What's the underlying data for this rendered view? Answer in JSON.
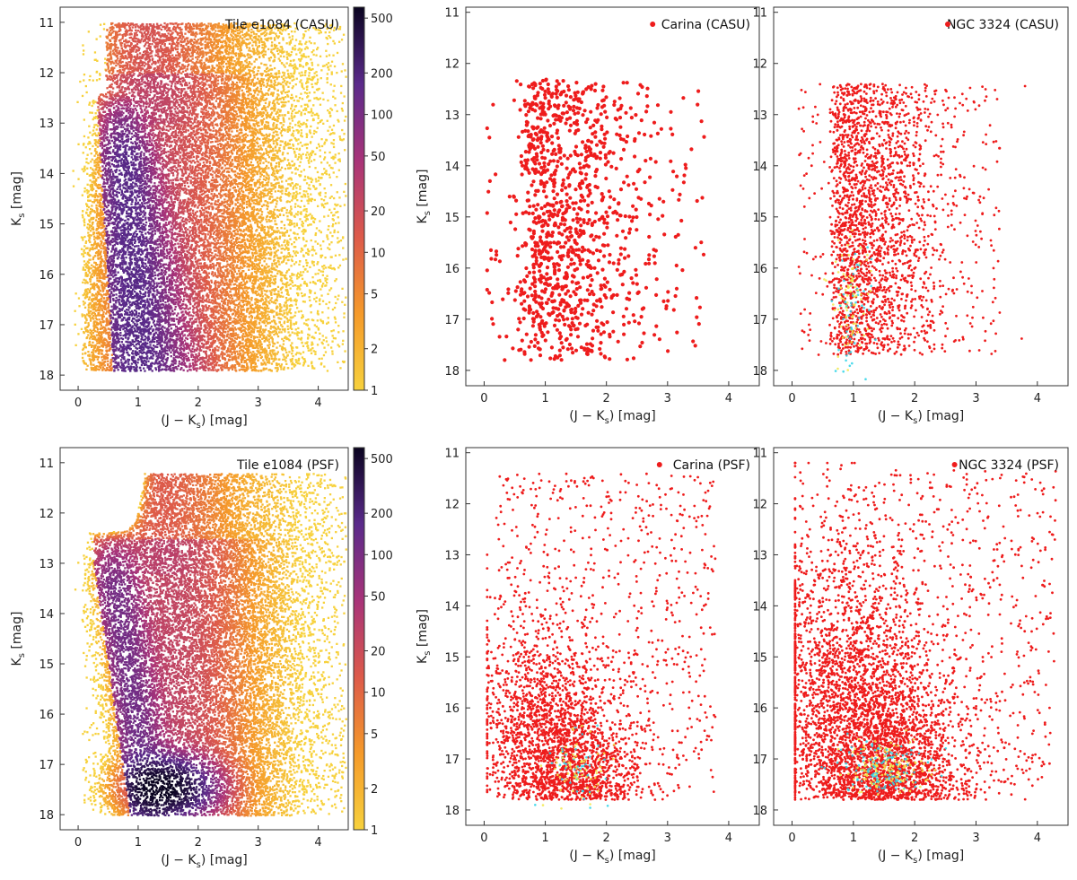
{
  "figure": {
    "xlabel_prefix": "(J − K",
    "xlabel_sub": "s",
    "xlabel_suffix": ") [mag]",
    "ylabel_prefix": "K",
    "ylabel_sub": "s",
    "ylabel_suffix": " [mag]"
  },
  "colors": {
    "points": "#ee1c1c",
    "density_low": "#f5c12e",
    "density_mid": "#b5367a",
    "density_high": "#0a0623",
    "dense_cyan": "#2fd3e8",
    "dense_yellow": "#f2e84a"
  },
  "chart_data": [
    {
      "type": "heatmap",
      "panel": "top-left",
      "legend_text": "Tile e1084 (CASU)",
      "xlim": [
        -0.3,
        4.5
      ],
      "ylim": [
        18.3,
        10.7
      ],
      "xticks": [
        0,
        1,
        2,
        3,
        4
      ],
      "yticks": [
        11,
        12,
        13,
        14,
        15,
        16,
        17,
        18
      ],
      "colorbar": {
        "scale": "log",
        "range": [
          1,
          600
        ],
        "ticks": [
          1,
          2,
          5,
          10,
          20,
          50,
          100,
          200,
          500
        ]
      },
      "features": {
        "ks_bright": 10.9,
        "ks_faint": 17.9,
        "ridge_color": [
          0.4,
          0.9
        ],
        "density_peak": 150
      }
    },
    {
      "type": "scatter",
      "panel": "top-middle",
      "legend_text": "Carina (CASU)",
      "xlim": [
        -0.3,
        4.5
      ],
      "ylim": [
        18.3,
        10.9
      ],
      "xticks": [
        0,
        1,
        2,
        3,
        4
      ],
      "yticks": [
        11,
        12,
        13,
        14,
        15,
        16,
        17,
        18
      ],
      "approx_points": 1200
    },
    {
      "type": "scatter",
      "panel": "top-right",
      "legend_text": "NGC 3324 (CASU)",
      "xlim": [
        -0.3,
        4.5
      ],
      "ylim": [
        18.3,
        10.9
      ],
      "xticks": [
        0,
        1,
        2,
        3,
        4
      ],
      "yticks": [
        11,
        12,
        13,
        14,
        15,
        16,
        17,
        18
      ],
      "approx_points": 2400
    },
    {
      "type": "heatmap",
      "panel": "bottom-left",
      "legend_text": "Tile e1084 (PSF)",
      "xlim": [
        -0.3,
        4.5
      ],
      "ylim": [
        18.3,
        10.7
      ],
      "xticks": [
        0,
        1,
        2,
        3,
        4
      ],
      "yticks": [
        11,
        12,
        13,
        14,
        15,
        16,
        17,
        18
      ],
      "colorbar": {
        "scale": "log",
        "range": [
          1,
          600
        ],
        "ticks": [
          1,
          2,
          5,
          10,
          20,
          50,
          100,
          200,
          500
        ]
      },
      "features": {
        "ks_bright": 11.4,
        "ks_faint": 18.0,
        "density_peak_at": [
          1.5,
          17.4
        ]
      }
    },
    {
      "type": "scatter",
      "panel": "bottom-middle",
      "legend_text": "Carina (PSF)",
      "xlim": [
        -0.3,
        4.5
      ],
      "ylim": [
        18.3,
        10.9
      ],
      "xticks": [
        0,
        1,
        2,
        3,
        4
      ],
      "yticks": [
        11,
        12,
        13,
        14,
        15,
        16,
        17,
        18
      ],
      "approx_points": 3000
    },
    {
      "type": "scatter",
      "panel": "bottom-right",
      "legend_text": "NGC 3324 (PSF)",
      "xlim": [
        -0.3,
        4.5
      ],
      "ylim": [
        18.3,
        10.9
      ],
      "xticks": [
        0,
        1,
        2,
        3,
        4
      ],
      "yticks": [
        11,
        12,
        13,
        14,
        15,
        16,
        17,
        18
      ],
      "approx_points": 12000
    }
  ]
}
